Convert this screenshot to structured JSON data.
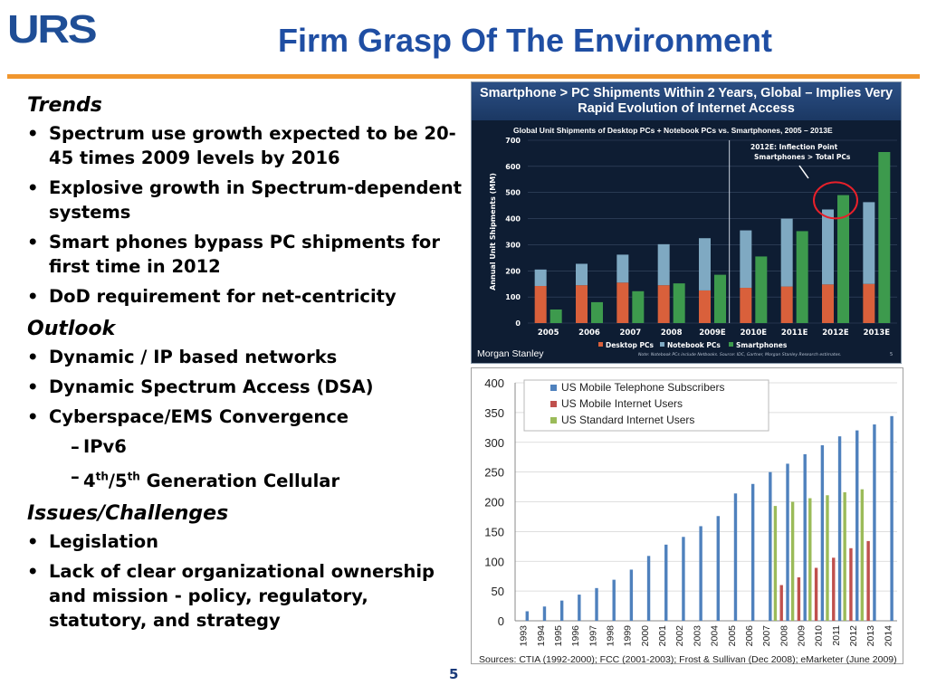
{
  "header": {
    "logo": "URS",
    "title": "Firm Grasp Of The Environment",
    "brand_color": "#1f4ea3",
    "rule_color": "#f0962e"
  },
  "sections": [
    {
      "heading": "Trends",
      "items": [
        {
          "text": "Spectrum use growth expected to be 20-45 times 2009 levels by 2016"
        },
        {
          "text": "Explosive growth in Spectrum-dependent systems"
        },
        {
          "text": "Smart phones bypass PC shipments for first time in 2012"
        },
        {
          "text": "DoD requirement for net-centricity"
        }
      ]
    },
    {
      "heading": "Outlook",
      "items": [
        {
          "text": "Dynamic / IP based networks"
        },
        {
          "text": "Dynamic Spectrum Access (DSA)"
        },
        {
          "text": "Cyberspace/EMS Convergence"
        }
      ],
      "subitems": [
        "IPv6",
        "4th/5th Generation Cellular"
      ]
    },
    {
      "heading": "Issues/Challenges",
      "items": [
        {
          "text": "Legislation"
        },
        {
          "text": "Lack of clear organizational ownership and mission - policy, regulatory, statutory, and strategy"
        }
      ]
    }
  ],
  "page_number": "5",
  "chart_data": [
    {
      "type": "bar",
      "title": "Smartphone > PC Shipments Within 2 Years, Global – Implies Very Rapid Evolution of Internet Access",
      "subtitle": "Global Unit Shipments of Desktop PCs + Notebook PCs vs. Smartphones, 2005 – 2013E",
      "ylabel": "Annual Unit Shipments (MM)",
      "ylim": [
        0,
        700
      ],
      "yticks": [
        0,
        100,
        200,
        300,
        400,
        500,
        600,
        700
      ],
      "categories": [
        "2005",
        "2006",
        "2007",
        "2008",
        "2009E",
        "2010E",
        "2011E",
        "2012E",
        "2013E"
      ],
      "series": [
        {
          "name": "Desktop PCs",
          "color": "#d9603b",
          "values": [
            142,
            145,
            155,
            145,
            125,
            135,
            140,
            148,
            150
          ]
        },
        {
          "name": "Notebook PCs",
          "color": "#7fa9c2",
          "values": [
            63,
            82,
            107,
            157,
            200,
            220,
            260,
            287,
            313
          ]
        },
        {
          "name": "Smartphones",
          "color": "#3d9a4d",
          "values": [
            52,
            80,
            122,
            152,
            185,
            255,
            352,
            490,
            655
          ]
        }
      ],
      "annotation": "2012E: Inflection Point Smartphones > Total PCs",
      "source_brand": "Morgan Stanley",
      "note": "Note: Notebook PCs include Netbooks. Source: IDC, Gartner, Morgan Stanley Research estimates.",
      "slide_no": "5"
    },
    {
      "type": "bar",
      "title": "",
      "ylim": [
        0,
        400
      ],
      "yticks": [
        0,
        50,
        100,
        150,
        200,
        250,
        300,
        350,
        400
      ],
      "categories": [
        "1993",
        "1994",
        "1995",
        "1996",
        "1997",
        "1998",
        "1999",
        "2000",
        "2001",
        "2002",
        "2003",
        "2004",
        "2005",
        "2006",
        "2007",
        "2008",
        "2009",
        "2010",
        "2011",
        "2012",
        "2013",
        "2014"
      ],
      "series": [
        {
          "name": "US Mobile Telephone Subscribers",
          "color": "#4f81bd",
          "values": [
            16,
            24,
            34,
            44,
            55,
            69,
            86,
            109,
            128,
            141,
            159,
            176,
            214,
            230,
            250,
            264,
            280,
            295,
            310,
            320,
            330,
            344
          ]
        },
        {
          "name": "US Mobile Internet Users",
          "color": "#c0504d",
          "values": [
            null,
            null,
            null,
            null,
            null,
            null,
            null,
            null,
            null,
            null,
            null,
            null,
            null,
            null,
            null,
            60,
            73,
            89,
            106,
            122,
            134,
            null
          ]
        },
        {
          "name": "US Standard Internet Users",
          "color": "#9bbb59",
          "values": [
            null,
            null,
            null,
            null,
            null,
            null,
            null,
            null,
            null,
            null,
            null,
            null,
            null,
            null,
            null,
            193,
            200,
            206,
            211,
            216,
            221,
            null
          ]
        }
      ],
      "source": "Sources: CTIA  (1992-2000); FCC (2001-2003); Frost & Sullivan (Dec 2008); eMarketer (June 2009)"
    }
  ]
}
